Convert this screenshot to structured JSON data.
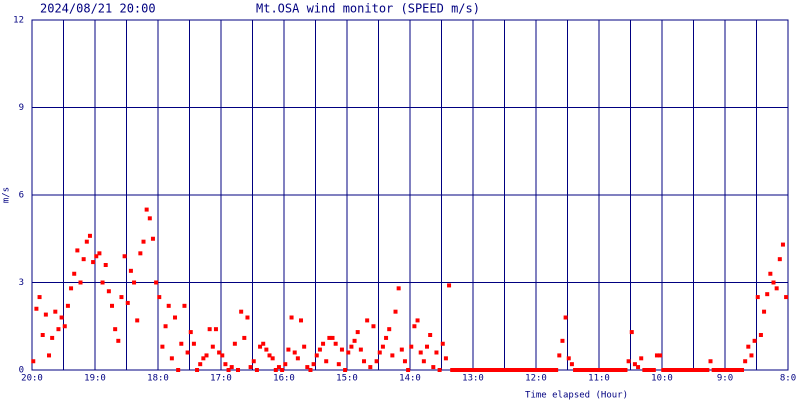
{
  "chart_data": {
    "type": "scatter",
    "title": "2024/08/21 20:00",
    "subtitle": "Mt.OSA wind monitor (SPEED m/s)",
    "y_label": "m/s",
    "x_label": "Time elapsed (Hour)",
    "xlim": [
      0,
      12
    ],
    "xticks": [
      {
        "value": 0,
        "label": "20:0"
      },
      {
        "value": 1,
        "label": "19:0"
      },
      {
        "value": 2,
        "label": "18:0"
      },
      {
        "value": 3,
        "label": "17:0"
      },
      {
        "value": 4,
        "label": "16:0"
      },
      {
        "value": 5,
        "label": "15:0"
      },
      {
        "value": 6,
        "label": "14:0"
      },
      {
        "value": 7,
        "label": "13:0"
      },
      {
        "value": 8,
        "label": "12:0"
      },
      {
        "value": 9,
        "label": "11:0"
      },
      {
        "value": 10,
        "label": "10:0"
      },
      {
        "value": 11,
        "label": "9:0"
      },
      {
        "value": 12,
        "label": "8:0"
      }
    ],
    "xminorticks": [
      0.5,
      1.5,
      2.5,
      3.5,
      4.5,
      5.5,
      6.5,
      7.5,
      8.5,
      9.5,
      10.5,
      11.5
    ],
    "ylim": [
      0,
      12
    ],
    "yticks": [
      0,
      3,
      6,
      9,
      12
    ],
    "grid": true,
    "grid_color": "#000080",
    "color": "#ff0000",
    "x": [
      0.02,
      0.07,
      0.12,
      0.17,
      0.22,
      0.27,
      0.32,
      0.37,
      0.42,
      0.47,
      0.52,
      0.57,
      0.62,
      0.67,
      0.72,
      0.77,
      0.82,
      0.87,
      0.92,
      0.97,
      1.02,
      1.07,
      1.12,
      1.17,
      1.22,
      1.27,
      1.32,
      1.37,
      1.42,
      1.47,
      1.52,
      1.57,
      1.62,
      1.67,
      1.72,
      1.77,
      1.82,
      1.87,
      1.92,
      1.97,
      2.02,
      2.07,
      2.12,
      2.17,
      2.22,
      2.27,
      2.32,
      2.37,
      2.42,
      2.47,
      2.52,
      2.57,
      2.62,
      2.67,
      2.72,
      2.77,
      2.82,
      2.87,
      2.92,
      2.97,
      3.02,
      3.07,
      3.12,
      3.17,
      3.22,
      3.27,
      3.32,
      3.37,
      3.42,
      3.47,
      3.52,
      3.57,
      3.62,
      3.67,
      3.72,
      3.77,
      3.82,
      3.87,
      3.92,
      3.97,
      4.02,
      4.07,
      4.12,
      4.17,
      4.22,
      4.27,
      4.32,
      4.37,
      4.42,
      4.47,
      4.52,
      4.57,
      4.62,
      4.67,
      4.72,
      4.77,
      4.82,
      4.87,
      4.92,
      4.97,
      5.02,
      5.07,
      5.12,
      5.17,
      5.22,
      5.27,
      5.32,
      5.37,
      5.42,
      5.47,
      5.52,
      5.57,
      5.62,
      5.67,
      5.72,
      5.77,
      5.82,
      5.87,
      5.92,
      5.97,
      6.02,
      6.07,
      6.12,
      6.17,
      6.22,
      6.27,
      6.32,
      6.37,
      6.42,
      6.47,
      6.52,
      6.57,
      6.62,
      6.67,
      6.72,
      6.77,
      6.82,
      6.87,
      6.92,
      6.97,
      7.02,
      7.07,
      7.12,
      7.17,
      7.22,
      7.27,
      7.32,
      7.37,
      7.42,
      7.47,
      7.52,
      7.57,
      7.62,
      7.67,
      7.72,
      7.77,
      7.82,
      7.87,
      7.92,
      7.97,
      8.02,
      8.07,
      8.12,
      8.17,
      8.22,
      8.27,
      8.32,
      8.37,
      8.42,
      8.47,
      8.52,
      8.57,
      8.62,
      8.67,
      8.72,
      8.77,
      8.82,
      8.87,
      8.92,
      8.97,
      9.02,
      9.07,
      9.12,
      9.17,
      9.22,
      9.27,
      9.32,
      9.37,
      9.42,
      9.47,
      9.52,
      9.57,
      9.62,
      9.67,
      9.72,
      9.77,
      9.82,
      9.87,
      9.92,
      9.97,
      10.02,
      10.07,
      10.12,
      10.17,
      10.22,
      10.27,
      10.32,
      10.37,
      10.42,
      10.47,
      10.52,
      10.57,
      10.62,
      10.67,
      10.72,
      10.77,
      10.82,
      10.87,
      10.92,
      10.97,
      11.02,
      11.07,
      11.12,
      11.17,
      11.22,
      11.27,
      11.32,
      11.37,
      11.42,
      11.47,
      11.52,
      11.57,
      11.62,
      11.67,
      11.72,
      11.77,
      11.82,
      11.87,
      11.92,
      11.97
    ],
    "values": [
      0.3,
      2.1,
      2.5,
      1.2,
      1.9,
      0.5,
      1.1,
      2.0,
      1.4,
      1.8,
      1.5,
      2.2,
      2.8,
      3.3,
      4.1,
      3.0,
      3.8,
      4.4,
      4.6,
      3.7,
      3.9,
      4.0,
      3.0,
      3.6,
      2.7,
      2.2,
      1.4,
      1.0,
      2.5,
      3.9,
      2.3,
      3.4,
      3.0,
      1.7,
      4.0,
      4.4,
      5.5,
      5.2,
      4.5,
      3.0,
      2.5,
      0.8,
      1.5,
      2.2,
      0.4,
      1.8,
      0,
      0.9,
      2.2,
      0.6,
      1.3,
      0.9,
      0,
      0.2,
      0.4,
      0.5,
      1.4,
      0.8,
      1.4,
      0.6,
      0.5,
      0.2,
      0,
      0.1,
      0.9,
      0,
      2.0,
      1.1,
      1.8,
      0.1,
      0.3,
      0,
      0.8,
      0.9,
      0.7,
      0.5,
      0.4,
      0,
      0.1,
      0,
      0.2,
      0.7,
      1.8,
      0.6,
      0.4,
      1.7,
      0.8,
      0.1,
      0,
      0.2,
      0.5,
      0.7,
      0.9,
      0.3,
      1.1,
      1.1,
      0.9,
      0.2,
      0.7,
      0,
      0.6,
      0.8,
      1.0,
      1.3,
      0.7,
      0.3,
      1.7,
      0.1,
      1.5,
      0.3,
      0.6,
      0.8,
      1.1,
      1.4,
      0.5,
      2.0,
      2.8,
      0.7,
      0.3,
      0,
      0.8,
      1.5,
      1.7,
      0.6,
      0.3,
      0.8,
      1.2,
      0.1,
      0.6,
      0,
      0.9,
      0.4,
      2.9,
      0,
      0,
      0,
      0,
      0,
      0,
      0,
      0,
      0,
      0,
      0,
      0,
      0,
      0,
      0,
      0,
      0,
      0,
      0,
      0,
      0,
      0,
      0,
      0,
      0,
      0,
      0,
      0,
      0,
      0,
      0,
      0,
      0,
      0,
      0.5,
      1.0,
      1.8,
      0.4,
      0.2,
      0,
      0,
      0,
      0,
      0,
      0,
      0,
      0,
      0,
      0,
      0,
      0,
      0,
      0,
      0,
      0,
      0,
      0.3,
      1.3,
      0.2,
      0.1,
      0.4,
      0,
      0,
      0,
      0,
      0.5,
      0.5,
      0,
      0,
      0,
      0,
      0,
      0,
      0,
      0,
      0,
      0,
      0,
      0,
      0,
      0,
      0,
      0.3,
      0,
      0,
      0,
      0,
      0,
      0,
      0,
      0,
      0,
      0,
      0.3,
      0.8,
      0.5,
      1.0,
      2.5,
      1.2,
      2.0,
      2.6,
      3.3,
      3.0,
      2.8,
      3.8,
      4.3,
      2.5
    ]
  }
}
